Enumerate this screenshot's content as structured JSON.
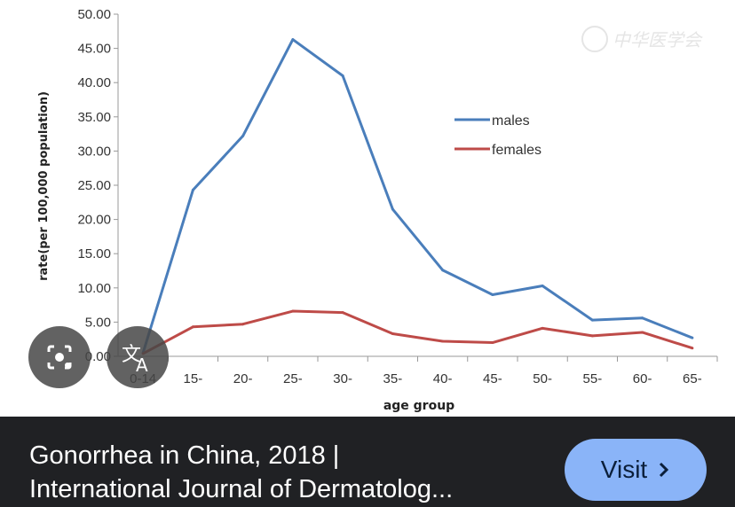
{
  "chart_data": {
    "type": "line",
    "title": "",
    "xlabel": "age group",
    "ylabel": "rate(per 100,000 population)",
    "categories": [
      "0-14",
      "15-",
      "20-",
      "25-",
      "30-",
      "35-",
      "40-",
      "45-",
      "50-",
      "55-",
      "60-",
      "65-"
    ],
    "yticks": [
      "0.00",
      "5.00",
      "10.00",
      "15.00",
      "20.00",
      "25.00",
      "30.00",
      "35.00",
      "40.00",
      "45.00",
      "50.00"
    ],
    "ylim": [
      0,
      50
    ],
    "grid": false,
    "legend_position": "right-center",
    "series": [
      {
        "name": "males",
        "color": "#4a7ebb",
        "values": [
          0.5,
          24.3,
          32.2,
          46.3,
          41.0,
          21.5,
          12.6,
          9.0,
          10.3,
          5.3,
          5.6,
          2.7
        ]
      },
      {
        "name": "females",
        "color": "#be4b48",
        "values": [
          0.4,
          4.3,
          4.7,
          6.6,
          6.4,
          3.3,
          2.2,
          2.0,
          4.1,
          3.0,
          3.5,
          1.2
        ]
      }
    ],
    "watermark": "中华医学会"
  },
  "overlay": {
    "lens_icon": "camera-lens-icon",
    "translate_icon": "translate-icon"
  },
  "result": {
    "title_line1": "Gonorrhea in China, 2018 |",
    "title_line2": "International Journal of Dermatolog...",
    "visit_label": "Visit",
    "visit_icon": "chevron-right-icon",
    "accent": "#8ab4f8"
  }
}
